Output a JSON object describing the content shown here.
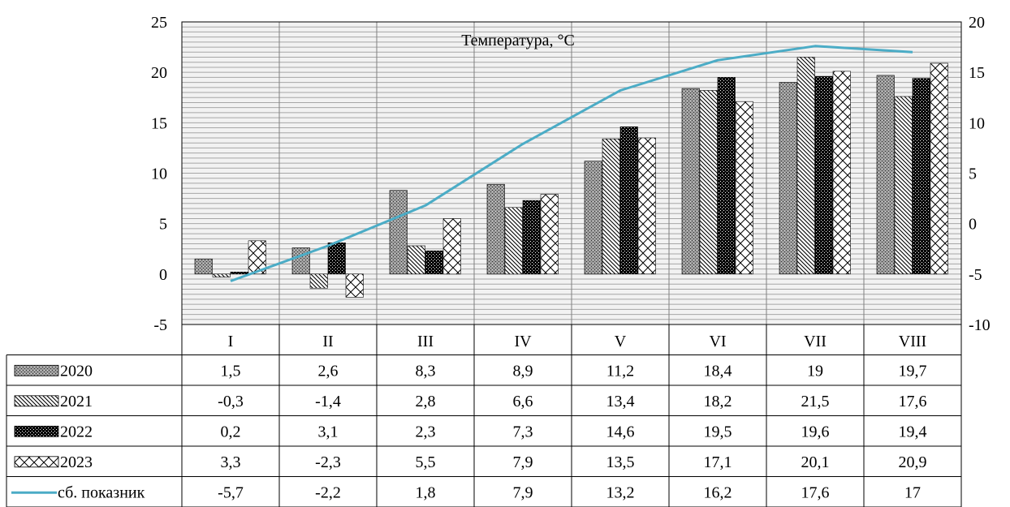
{
  "chart_data": {
    "type": "bar",
    "title": "",
    "annotation": "Температура, °С",
    "categories": [
      "I",
      "II",
      "III",
      "IV",
      "V",
      "VI",
      "VII",
      "VIII"
    ],
    "series": [
      {
        "name": "2020",
        "type": "bar",
        "pattern": "dots-gray",
        "axis": "left",
        "labels": [
          "1,5",
          "2,6",
          "8,3",
          "8,9",
          "11,2",
          "18,4",
          "19",
          "19,7"
        ],
        "values": [
          1.5,
          2.6,
          8.3,
          8.9,
          11.2,
          18.4,
          19,
          19.7
        ]
      },
      {
        "name": "2021",
        "type": "bar",
        "pattern": "diagonal-lines",
        "axis": "left",
        "labels": [
          "-0,3",
          "-1,4",
          "2,8",
          "6,6",
          "13,4",
          "18,2",
          "21,5",
          "17,6"
        ],
        "values": [
          -0.3,
          -1.4,
          2.8,
          6.6,
          13.4,
          18.2,
          21.5,
          17.6
        ]
      },
      {
        "name": "2022",
        "type": "bar",
        "pattern": "dots-black",
        "axis": "left",
        "labels": [
          "0,2",
          "3,1",
          "2,3",
          "7,3",
          "14,6",
          "19,5",
          "19,6",
          "19,4"
        ],
        "values": [
          0.2,
          3.1,
          2.3,
          7.3,
          14.6,
          19.5,
          19.6,
          19.4
        ]
      },
      {
        "name": "2023",
        "type": "bar",
        "pattern": "crosshatch",
        "axis": "left",
        "labels": [
          "3,3",
          "-2,3",
          "5,5",
          "7,9",
          "13,5",
          "17,1",
          "20,1",
          "20,9"
        ],
        "values": [
          3.3,
          -2.3,
          5.5,
          7.9,
          13.5,
          17.1,
          20.1,
          20.9
        ]
      },
      {
        "name": "сб. показник",
        "type": "line",
        "axis": "right",
        "color": "#4BACC6",
        "labels": [
          "-5,7",
          "-2,2",
          "1,8",
          "7,9",
          "13,2",
          "16,2",
          "17,6",
          "17"
        ],
        "values": [
          -5.7,
          -2.2,
          1.8,
          7.9,
          13.2,
          16.2,
          17.6,
          17
        ]
      }
    ],
    "y_left": {
      "min": -5,
      "max": 25,
      "ticks": [
        "25",
        "20",
        "15",
        "10",
        "5",
        "0",
        "-5"
      ]
    },
    "y_right": {
      "min": -10,
      "max": 20,
      "ticks": [
        "20",
        "15",
        "10",
        "5",
        "0",
        "-5",
        "-10"
      ]
    },
    "grid": true,
    "data_table": true,
    "legend": "data-table"
  },
  "colors": {
    "line": "#4BACC6",
    "plot_bg": "#f2f2f2",
    "grid": "#a6a6a6",
    "vgrid": "#808080"
  }
}
